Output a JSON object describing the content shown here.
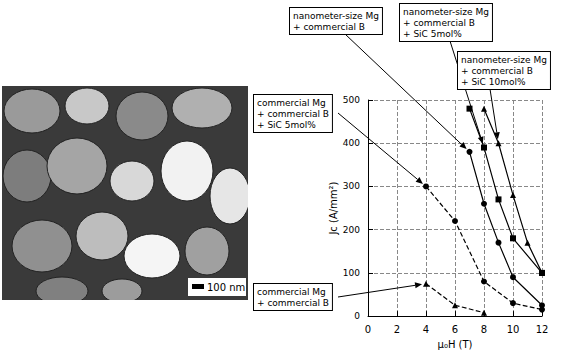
{
  "image": {
    "scale_bar": "100 nm"
  },
  "chart_data": {
    "type": "line",
    "x_label": "μ₀H (T)",
    "y_label": "Jc (A/mm²)",
    "xlim": [
      0,
      12
    ],
    "xticks": [
      0,
      2,
      4,
      6,
      8,
      10,
      12
    ],
    "ylim": [
      0,
      500
    ],
    "yticks": [
      0,
      100,
      200,
      300,
      400,
      500
    ],
    "grid": true,
    "series": [
      {
        "name": "commercial Mg + commercial B",
        "color": "#000000",
        "marker": "triangle",
        "line_style": "dashed",
        "x": [
          4,
          6,
          8
        ],
        "values": [
          75,
          25,
          8
        ]
      },
      {
        "name": "commercial Mg + commercial B + SiC 5mol%",
        "color": "#000000",
        "marker": "circle",
        "line_style": "dashed",
        "x": [
          4,
          6,
          8,
          10,
          12
        ],
        "values": [
          300,
          220,
          80,
          30,
          15
        ]
      },
      {
        "name": "nanometer-size Mg + commercial B",
        "color": "#000000",
        "marker": "circle",
        "line_style": "solid",
        "x": [
          7,
          8,
          9,
          10,
          12
        ],
        "values": [
          380,
          260,
          170,
          90,
          25
        ]
      },
      {
        "name": "nanometer-size Mg + commercial B + SiC 5mol%",
        "color": "#000000",
        "marker": "square",
        "line_style": "solid",
        "x": [
          7,
          8,
          9,
          10,
          12
        ],
        "values": [
          480,
          390,
          270,
          180,
          100
        ]
      },
      {
        "name": "nanometer-size Mg + commercial B + SiC 10mol%",
        "color": "#000000",
        "marker": "triangle",
        "line_style": "solid",
        "x": [
          8,
          9,
          10,
          11,
          12
        ],
        "values": [
          480,
          400,
          280,
          170,
          100
        ]
      }
    ]
  }
}
